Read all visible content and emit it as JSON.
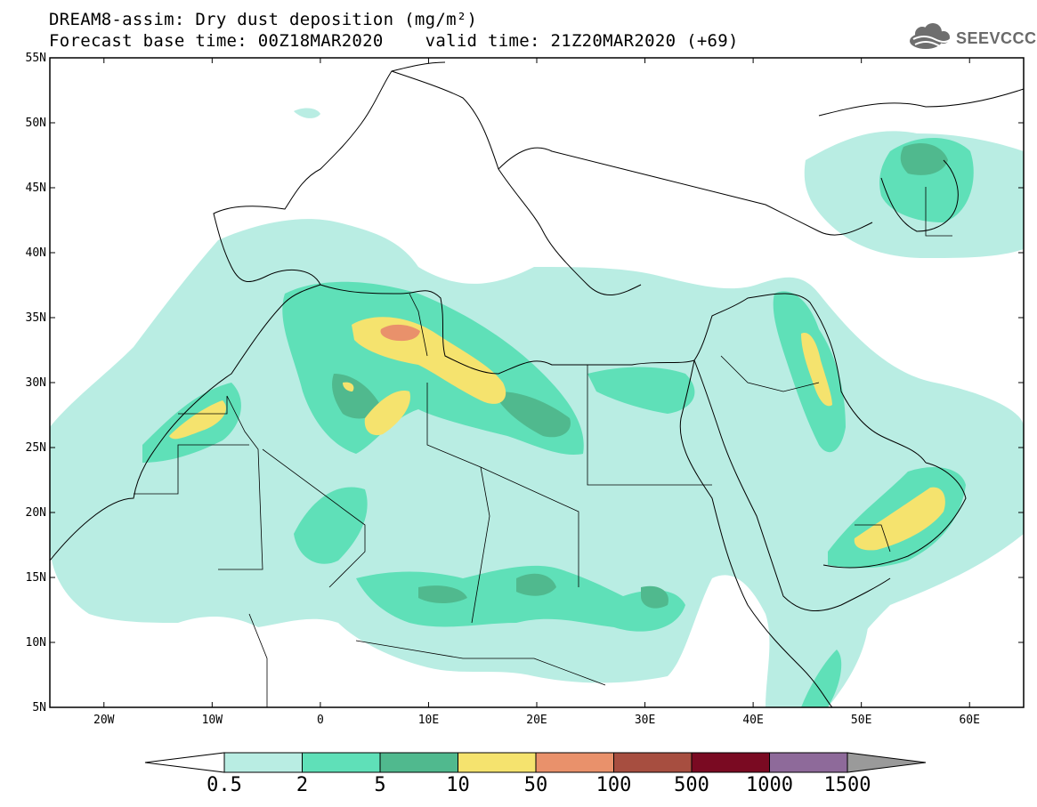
{
  "header": {
    "title_line1": "DREAM8-assim: Dry dust deposition (mg/m²)",
    "title_line2": "Forecast base time: 00Z18MAR2020    valid time: 21Z20MAR2020 (+69)",
    "logo_text": "SEEVCCC"
  },
  "map": {
    "lat_labels": [
      "55N",
      "50N",
      "45N",
      "40N",
      "35N",
      "30N",
      "25N",
      "20N",
      "15N",
      "10N",
      "5N"
    ],
    "lon_labels": [
      "20W",
      "10W",
      "0",
      "10E",
      "20E",
      "30E",
      "40E",
      "50E",
      "60E"
    ],
    "lat_range": [
      5,
      55
    ],
    "lon_range": [
      -25,
      65
    ]
  },
  "colorbar": {
    "labels": [
      "0.5",
      "2",
      "5",
      "10",
      "50",
      "100",
      "500",
      "1000",
      "1500"
    ],
    "colors": [
      "#b9ede3",
      "#5fe0b8",
      "#50b98e",
      "#f5e36e",
      "#e9916b",
      "#a74e40",
      "#7a0a22",
      "#8e6a9a",
      "#9a9a9a"
    ],
    "under_color": "#ffffff"
  }
}
